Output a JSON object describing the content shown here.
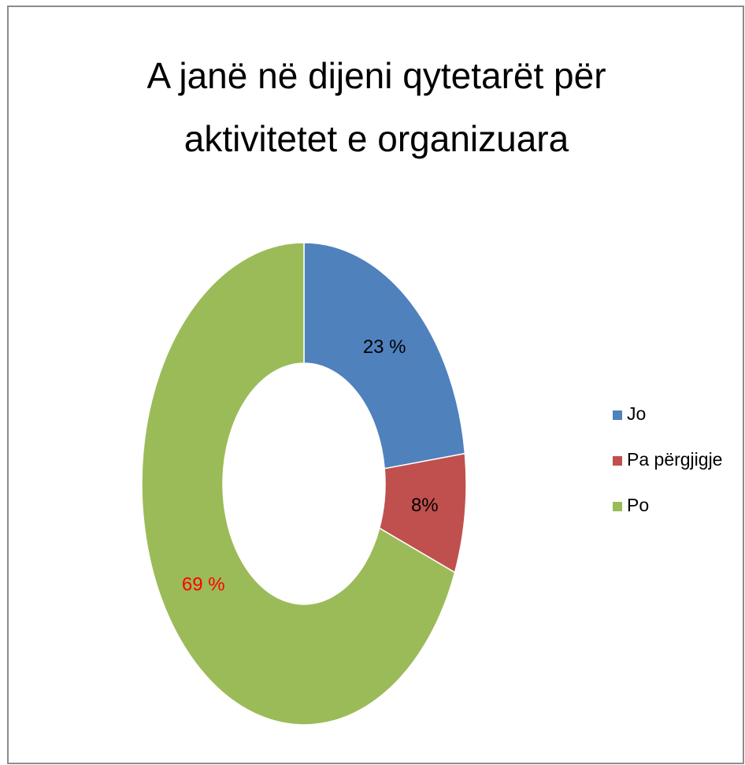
{
  "chart_data": {
    "type": "donut",
    "title": [
      "A janë në dijeni qytetarët për",
      "aktivitetet e organizuara"
    ],
    "categories": [
      "Jo",
      "Pa përgjigje",
      "Po"
    ],
    "values": [
      23,
      8,
      69
    ],
    "value_labels": [
      "23 %",
      "8%",
      "69 %"
    ],
    "colors": [
      "#4f81bd",
      "#c0504d",
      "#9bbb59"
    ],
    "label_colors": [
      "#000000",
      "#000000",
      "#ff0000"
    ],
    "legend": "right"
  }
}
